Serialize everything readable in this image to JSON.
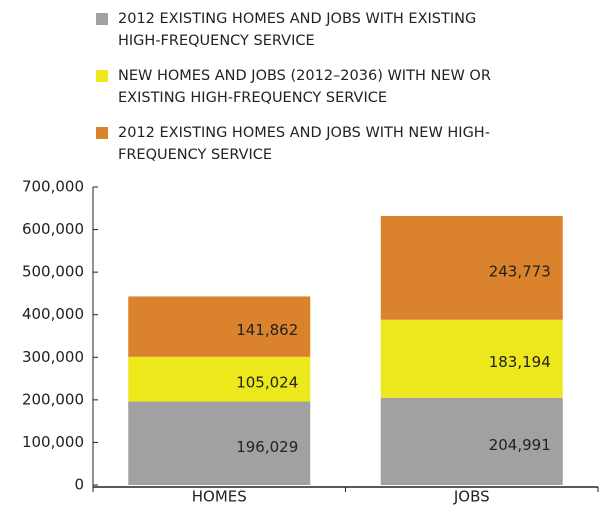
{
  "chart_data": {
    "type": "stacked_bar",
    "categories": [
      "HOMES",
      "JOBS"
    ],
    "series": [
      {
        "name": "2012 EXISTING HOMES AND JOBS WITH EXISTING HIGH-FREQUENCY SERVICE",
        "color": "#a1a1a1",
        "values": [
          196029,
          204991
        ],
        "value_labels": [
          "196,029",
          "204,991"
        ]
      },
      {
        "name": "NEW HOMES AND JOBS (2012–2036) WITH NEW OR EXISTING HIGH-FREQUENCY SERVICE",
        "color": "#ede81b",
        "values": [
          105024,
          183194
        ],
        "value_labels": [
          "105,024",
          "183,194"
        ]
      },
      {
        "name": "2012 EXISTING HOMES AND JOBS WITH NEW HIGH-FREQUENCY SERVICE",
        "color": "#da832c",
        "values": [
          141862,
          243773
        ],
        "value_labels": [
          "141,862",
          "243,773"
        ]
      }
    ],
    "ylim": [
      0,
      700000
    ],
    "yticks": [
      0,
      {
        "value": 100000,
        "label": "100,000"
      },
      {
        "value": 200000,
        "label": "200,000"
      },
      {
        "value": 300000,
        "label": "300,000"
      },
      {
        "value": 400000,
        "label": "400,000"
      },
      {
        "value": 500000,
        "label": "500,000"
      },
      {
        "value": 600000,
        "label": "600,000"
      },
      {
        "value": 700000,
        "label": "700,000"
      }
    ]
  }
}
